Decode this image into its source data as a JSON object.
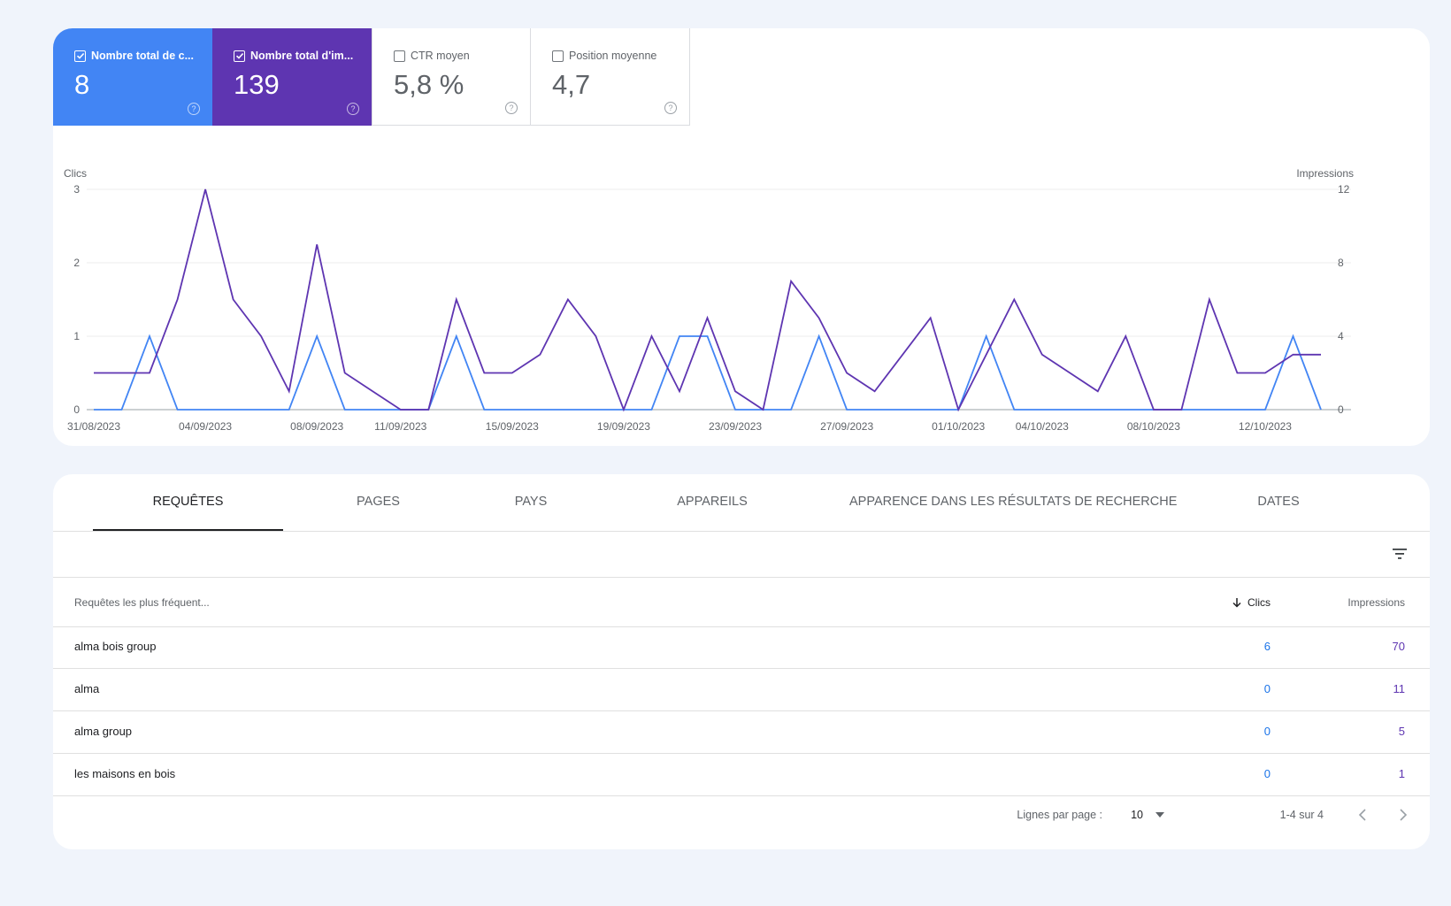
{
  "metrics": [
    {
      "label": "Nombre total de c...",
      "value": "8",
      "checked": true,
      "color": "#4285f4",
      "help_icon": "question-circle-icon"
    },
    {
      "label": "Nombre total d'im...",
      "value": "139",
      "checked": true,
      "color": "#5e35b1",
      "help_icon": "question-circle-icon"
    },
    {
      "label": "CTR moyen",
      "value": "5,8 %",
      "checked": false,
      "help_icon": "question-circle-icon"
    },
    {
      "label": "Position moyenne",
      "value": "4,7",
      "checked": false,
      "help_icon": "question-circle-icon"
    }
  ],
  "chart_data": {
    "type": "line",
    "left_axis_label": "Clics",
    "right_axis_label": "Impressions",
    "left_ylim": [
      0,
      3
    ],
    "right_ylim": [
      0,
      12
    ],
    "left_ticks": [
      "0",
      "1",
      "2",
      "3"
    ],
    "right_ticks": [
      "0",
      "4",
      "8",
      "12"
    ],
    "grid": true,
    "x": [
      "31/08/2023",
      "01/09/2023",
      "02/09/2023",
      "03/09/2023",
      "04/09/2023",
      "05/09/2023",
      "06/09/2023",
      "07/09/2023",
      "08/09/2023",
      "09/09/2023",
      "10/09/2023",
      "11/09/2023",
      "12/09/2023",
      "13/09/2023",
      "14/09/2023",
      "15/09/2023",
      "16/09/2023",
      "17/09/2023",
      "18/09/2023",
      "19/09/2023",
      "20/09/2023",
      "21/09/2023",
      "22/09/2023",
      "23/09/2023",
      "24/09/2023",
      "25/09/2023",
      "26/09/2023",
      "27/09/2023",
      "28/09/2023",
      "29/09/2023",
      "30/09/2023",
      "01/10/2023",
      "02/10/2023",
      "03/10/2023",
      "04/10/2023",
      "05/10/2023",
      "06/10/2023",
      "07/10/2023",
      "08/10/2023",
      "09/10/2023",
      "10/10/2023",
      "11/10/2023",
      "12/10/2023",
      "13/10/2023",
      "14/10/2023"
    ],
    "x_tick_labels": [
      "31/08/2023",
      "04/09/2023",
      "08/09/2023",
      "11/09/2023",
      "15/09/2023",
      "19/09/2023",
      "23/09/2023",
      "27/09/2023",
      "01/10/2023",
      "04/10/2023",
      "08/10/2023",
      "12/10/2023"
    ],
    "series": [
      {
        "name": "Clics",
        "axis": "left",
        "color": "#4285f4",
        "values": [
          0,
          0,
          1,
          0,
          0,
          0,
          0,
          0,
          1,
          0,
          0,
          0,
          0,
          1,
          0,
          0,
          0,
          0,
          0,
          0,
          0,
          1,
          1,
          0,
          0,
          0,
          1,
          0,
          0,
          0,
          0,
          0,
          1,
          0,
          0,
          0,
          0,
          0,
          0,
          0,
          0,
          0,
          0,
          1,
          0
        ]
      },
      {
        "name": "Impressions",
        "axis": "right",
        "color": "#5e35b1",
        "values": [
          2,
          2,
          2,
          6,
          12,
          6,
          4,
          1,
          9,
          2,
          1,
          0,
          0,
          6,
          2,
          2,
          3,
          6,
          4,
          0,
          4,
          1,
          5,
          1,
          0,
          7,
          5,
          2,
          1,
          3,
          5,
          0,
          3,
          6,
          3,
          2,
          1,
          4,
          0,
          0,
          6,
          2,
          2,
          3,
          3
        ]
      }
    ]
  },
  "tabs": [
    "REQUÊTES",
    "PAGES",
    "PAYS",
    "APPAREILS",
    "APPARENCE DANS LES RÉSULTATS DE RECHERCHE",
    "DATES"
  ],
  "active_tab": "REQUÊTES",
  "filter_icon": "filter-list-icon",
  "table": {
    "columns": {
      "query": "Requêtes les plus fréquent...",
      "clicks": "Clics",
      "impressions": "Impressions"
    },
    "sort_icon": "arrow-down-icon",
    "rows": [
      {
        "query": "alma bois group",
        "clicks": "6",
        "impressions": "70"
      },
      {
        "query": "alma",
        "clicks": "0",
        "impressions": "11"
      },
      {
        "query": "alma group",
        "clicks": "0",
        "impressions": "5"
      },
      {
        "query": "les maisons en bois",
        "clicks": "0",
        "impressions": "1"
      }
    ]
  },
  "pagination": {
    "rows_per_page_label": "Lignes par page :",
    "rows_per_page": "10",
    "range": "1-4 sur 4",
    "prev_icon": "chevron-left-icon",
    "next_icon": "chevron-right-icon"
  }
}
